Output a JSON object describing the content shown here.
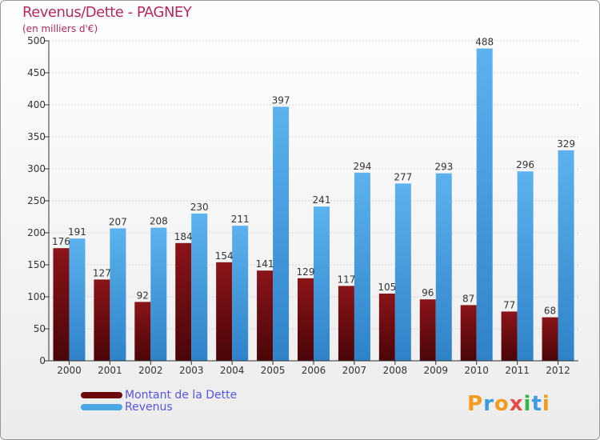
{
  "chart_data": {
    "type": "bar",
    "title": "Revenus/Dette - PAGNEY",
    "subtitle": "(en milliers d'€)",
    "xlabel": "",
    "ylabel": "",
    "ylim": [
      0,
      500
    ],
    "yticks": [
      "0",
      "50",
      "100",
      "150",
      "200",
      "250",
      "300",
      "350",
      "400",
      "450",
      "500"
    ],
    "grid": true,
    "legend_position": "bottom-left",
    "categories": [
      "2000",
      "2001",
      "2002",
      "2003",
      "2004",
      "2005",
      "2006",
      "2007",
      "2008",
      "2009",
      "2010",
      "2011",
      "2012"
    ],
    "series": [
      {
        "name": "Montant de la Dette",
        "color": "#7a0f12",
        "values": [
          176,
          127,
          92,
          184,
          154,
          141,
          129,
          117,
          105,
          96,
          87,
          77,
          68
        ]
      },
      {
        "name": "Revenus",
        "color": "#4ba6e6",
        "values": [
          191,
          207,
          208,
          230,
          211,
          397,
          241,
          294,
          277,
          293,
          488,
          296,
          329
        ]
      }
    ]
  },
  "legend": {
    "debt_label": "Montant de la Dette",
    "revenue_label": "Revenus"
  },
  "logo": {
    "text": "Proxiti",
    "colors": [
      "#f39a1f",
      "#3d9be0",
      "#f39a1f",
      "#e34a4a",
      "#39b54a",
      "#3d9be0",
      "#f39a1f"
    ]
  }
}
